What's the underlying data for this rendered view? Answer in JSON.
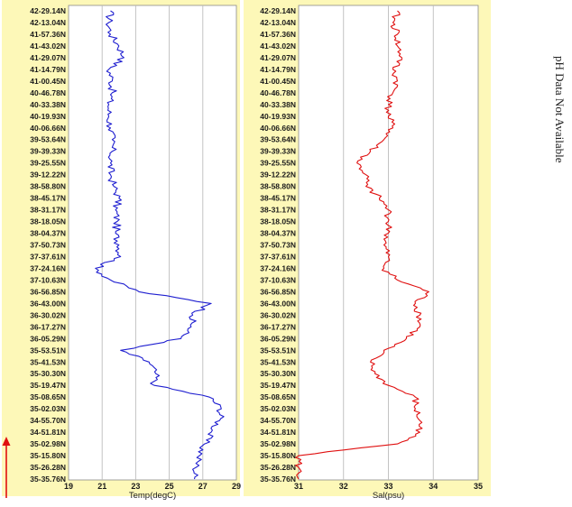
{
  "side_note": "pH Data Not Available",
  "colors": {
    "panel_bg": "#fdf8b8",
    "plot_bg": "#ffffff",
    "grid": "#bdbdbd",
    "temp_line": "#1f1fd0",
    "sal_line": "#e01010",
    "arrow": "#e01010"
  },
  "icons": {
    "direction_arrow": "up-arrow-icon"
  },
  "chart_data": [
    {
      "type": "line",
      "orientation": "vertical-profile",
      "xlabel": "Temp(degC)",
      "ylabel": "",
      "xlim": [
        19,
        29
      ],
      "x_ticks": [
        "19",
        "21",
        "23",
        "25",
        "27",
        "29"
      ],
      "grid": true,
      "color": "#1f1fd0",
      "latitudes": [
        "42-29.14N",
        "42-13.04N",
        "41-57.36N",
        "41-43.02N",
        "41-29.07N",
        "41-14.79N",
        "41-00.45N",
        "40-46.78N",
        "40-33.38N",
        "40-19.93N",
        "40-06.66N",
        "39-53.64N",
        "39-39.33N",
        "39-25.55N",
        "39-12.22N",
        "38-58.80N",
        "38-45.17N",
        "38-31.17N",
        "38-18.05N",
        "38-04.37N",
        "37-50.73N",
        "37-37.61N",
        "37-24.16N",
        "37-10.63N",
        "36-56.85N",
        "36-43.00N",
        "36-30.02N",
        "36-17.27N",
        "36-05.29N",
        "35-53.51N",
        "35-41.53N",
        "35-30.30N",
        "35-19.47N",
        "35-08.65N",
        "35-02.03N",
        "34-55.70N",
        "34-51.81N",
        "35-02.98N",
        "35-15.80N",
        "35-26.28N",
        "35-35.76N"
      ],
      "values": [
        21.5,
        21.4,
        21.5,
        22.0,
        22.3,
        21.4,
        21.6,
        21.6,
        21.4,
        21.4,
        21.5,
        21.6,
        21.6,
        21.5,
        21.5,
        21.7,
        22.0,
        21.8,
        21.9,
        21.8,
        22.0,
        22.1,
        20.6,
        21.5,
        23.2,
        27.5,
        26.4,
        26.3,
        25.7,
        22.1,
        23.8,
        24.2,
        24.1,
        27.4,
        28.1,
        28.0,
        27.5,
        27.1,
        26.8,
        26.6,
        26.5
      ]
    },
    {
      "type": "line",
      "orientation": "vertical-profile",
      "xlabel": "Sal(psu)",
      "ylabel": "",
      "xlim": [
        31,
        35
      ],
      "x_ticks": [
        "31",
        "32",
        "33",
        "34",
        "35"
      ],
      "grid": true,
      "color": "#e01010",
      "latitudes": [
        "42-29.14N",
        "42-13.04N",
        "41-57.36N",
        "41-43.02N",
        "41-29.07N",
        "41-14.79N",
        "41-00.45N",
        "40-46.78N",
        "40-33.38N",
        "40-19.93N",
        "40-06.66N",
        "39-53.64N",
        "39-39.33N",
        "39-25.55N",
        "39-12.22N",
        "38-58.80N",
        "38-45.17N",
        "38-31.17N",
        "38-18.05N",
        "38-04.37N",
        "37-50.73N",
        "37-37.61N",
        "37-24.16N",
        "37-10.63N",
        "36-56.85N",
        "36-43.00N",
        "36-30.02N",
        "36-17.27N",
        "36-05.29N",
        "35-53.51N",
        "35-41.53N",
        "35-30.30N",
        "35-19.47N",
        "35-08.65N",
        "35-02.03N",
        "34-55.70N",
        "34-51.81N",
        "35-02.98N",
        "35-15.80N",
        "35-26.28N",
        "35-35.76N"
      ],
      "values": [
        33.2,
        33.1,
        33.2,
        33.2,
        33.3,
        33.1,
        33.2,
        33.1,
        33.0,
        33.0,
        33.1,
        32.9,
        32.6,
        32.3,
        32.5,
        32.5,
        32.8,
        33.0,
        33.0,
        33.0,
        32.9,
        33.0,
        32.9,
        33.2,
        33.9,
        33.6,
        33.7,
        33.7,
        33.4,
        32.9,
        32.6,
        32.7,
        33.0,
        33.6,
        33.6,
        33.7,
        33.7,
        33.2,
        31.0,
        31.0,
        31.0
      ]
    }
  ]
}
